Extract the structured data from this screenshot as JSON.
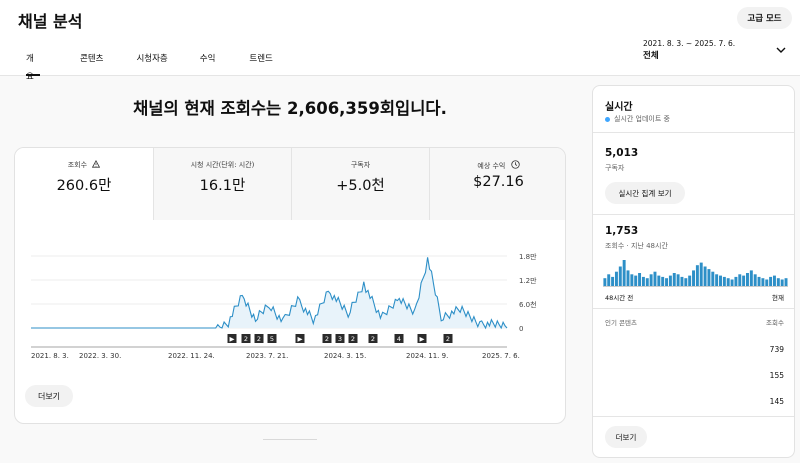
{
  "header": {
    "title": "채널 분석",
    "mode_button": "고급 모드",
    "tabs": [
      {
        "label": "개요",
        "active": true
      },
      {
        "label": "콘텐츠",
        "active": false
      },
      {
        "label": "시청자층",
        "active": false
      },
      {
        "label": "수익",
        "active": false
      },
      {
        "label": "트렌드",
        "active": false
      }
    ],
    "date_range": "2021. 8. 3. ~ 2025. 7. 6.",
    "date_selection": "전체"
  },
  "main": {
    "headline": "채널의 현재 조회수는 2,606,359회입니다.",
    "metrics": [
      {
        "label": "조회수",
        "value": "260.6만",
        "icon": "warning-icon"
      },
      {
        "label": "시청 시간(단위: 시간)",
        "value": "16.1만",
        "icon": ""
      },
      {
        "label": "구독자",
        "value": "+5.0천",
        "icon": ""
      },
      {
        "label": "예상 수익",
        "value": "$27.16",
        "icon": "dollar-circle-icon"
      }
    ],
    "more_button": "더보기"
  },
  "chart_data": {
    "type": "line",
    "x_tick_labels": [
      "2021. 8. 3.",
      "2022. 3. 30.",
      "2022. 11. 24.",
      "2023. 7. 21.",
      "2024. 3. 15.",
      "2024. 11. 9.",
      "2025. 7. 6."
    ],
    "y_tick_labels": [
      "1.8만",
      "1.2만",
      "6.0천",
      "0"
    ],
    "ylim": [
      0,
      18000
    ],
    "x": [
      "2021-08-03",
      "2022-03-30",
      "2022-11-24",
      "2023-02-10",
      "2023-03-20",
      "2023-05-01",
      "2023-06-10",
      "2023-07-21",
      "2023-09-01",
      "2023-10-15",
      "2023-12-01",
      "2024-01-15",
      "2024-03-15",
      "2024-05-01",
      "2024-06-20",
      "2024-08-10",
      "2024-10-01",
      "2024-11-09",
      "2024-12-20",
      "2025-02-15",
      "2025-04-15",
      "2025-07-06"
    ],
    "series": [
      {
        "values": [
          0,
          0,
          0,
          0,
          1800,
          8500,
          2500,
          6300,
          1800,
          7500,
          2200,
          9800,
          4000,
          11500,
          2800,
          7700,
          4400,
          17600,
          3100,
          5000,
          1500,
          1100
        ]
      }
    ],
    "markers": [
      "▶",
      "2",
      "2",
      "5",
      "▶",
      "2",
      "3",
      "2",
      "2",
      "4",
      "▶",
      "2"
    ],
    "line_color": "#2d8fc7"
  },
  "side": {
    "title": "실시간",
    "live_text": "실시간 업데이트 중",
    "subscribers_value": "5,013",
    "subscribers_label": "구독자",
    "live_count_button": "실시간 집계 보기",
    "views_value": "1,753",
    "views_label": "조회수 · 지난 48시간",
    "mini_left": "48시간 전",
    "mini_right": "현재",
    "mini_bars": [
      12,
      18,
      14,
      22,
      30,
      40,
      24,
      18,
      16,
      20,
      14,
      12,
      18,
      22,
      16,
      14,
      12,
      16,
      20,
      18,
      14,
      12,
      16,
      24,
      32,
      36,
      30,
      26,
      22,
      18,
      16,
      14,
      12,
      10,
      14,
      18,
      16,
      20,
      24,
      18,
      14,
      12,
      10,
      14,
      16,
      12,
      10,
      12
    ],
    "top_content_label": "인기 콘텐츠",
    "top_content_metric": "조회수",
    "top_content_values": [
      "739",
      "155",
      "145"
    ],
    "more_button": "더보기"
  }
}
